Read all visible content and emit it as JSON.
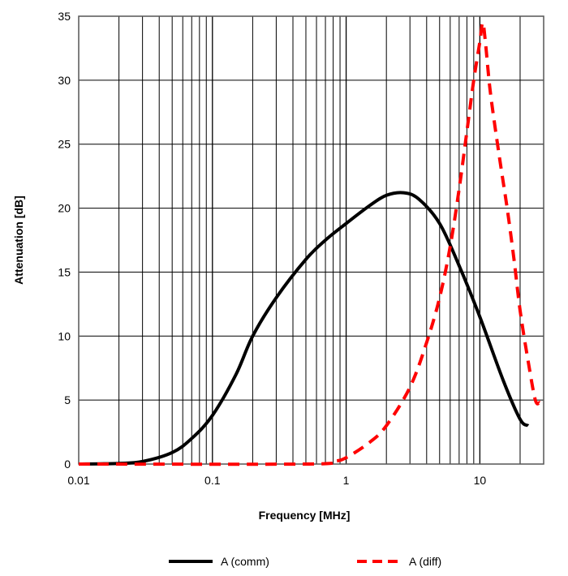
{
  "chart_data": {
    "type": "line",
    "title": "",
    "xlabel": "Frequency [MHz]",
    "ylabel": "Attenuation [dB]",
    "xscale": "log",
    "xlim": [
      0.01,
      30
    ],
    "ylim": [
      0,
      35
    ],
    "grid": true,
    "legend_position": "bottom",
    "xticks": [
      {
        "v": 0.01,
        "label": "0.01"
      },
      {
        "v": 0.1,
        "label": "0.1"
      },
      {
        "v": 1,
        "label": "1"
      },
      {
        "v": 10,
        "label": "10"
      }
    ],
    "yticks": [
      {
        "v": 0,
        "label": "0"
      },
      {
        "v": 5,
        "label": "5"
      },
      {
        "v": 10,
        "label": "10"
      },
      {
        "v": 15,
        "label": "15"
      },
      {
        "v": 20,
        "label": "20"
      },
      {
        "v": 25,
        "label": "25"
      },
      {
        "v": 30,
        "label": "30"
      },
      {
        "v": 35,
        "label": "35"
      }
    ],
    "series": [
      {
        "name": "A (comm)",
        "color": "#000000",
        "style": "solid",
        "x": [
          0.01,
          0.02,
          0.03,
          0.05,
          0.07,
          0.1,
          0.15,
          0.2,
          0.3,
          0.5,
          0.7,
          1,
          1.5,
          2,
          2.7,
          3.5,
          5,
          7,
          10,
          15,
          20,
          23
        ],
        "y": [
          0,
          0.05,
          0.2,
          0.9,
          2,
          3.8,
          7,
          10,
          13,
          16,
          17.5,
          18.8,
          20.2,
          21,
          21.2,
          20.7,
          18.8,
          15.5,
          11.5,
          6.5,
          3.5,
          3
        ]
      },
      {
        "name": "A (diff)",
        "color": "#ff0000",
        "style": "dashed",
        "x": [
          0.01,
          0.5,
          0.8,
          1,
          1.5,
          2,
          3,
          4,
          5,
          6,
          7,
          8,
          9,
          10,
          10.5,
          11,
          12,
          14,
          16,
          18,
          20,
          23,
          26,
          28
        ],
        "y": [
          0,
          0,
          0.2,
          0.5,
          1.7,
          3,
          6,
          9.5,
          13,
          17,
          21.5,
          26,
          30,
          33,
          34.5,
          33,
          29,
          24,
          20,
          16,
          12,
          8,
          5,
          4.8
        ]
      }
    ]
  }
}
